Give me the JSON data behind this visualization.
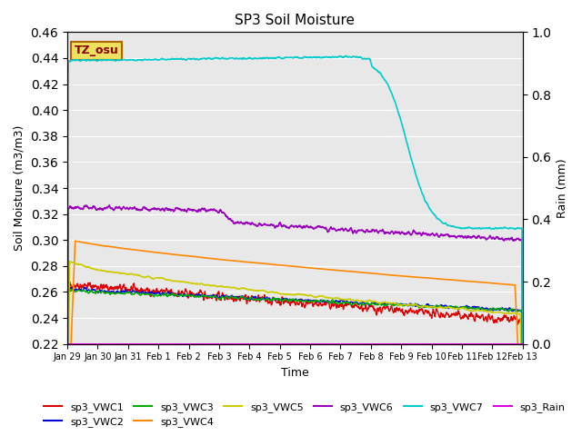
{
  "title": "SP3 Soil Moisture",
  "xlabel": "Time",
  "ylabel_left": "Soil Moisture (m3/m3)",
  "ylabel_right": "Rain (mm)",
  "ylim_left": [
    0.22,
    0.46
  ],
  "ylim_right": [
    0.0,
    1.0
  ],
  "yticks_left": [
    0.22,
    0.24,
    0.26,
    0.28,
    0.3,
    0.32,
    0.34,
    0.36,
    0.38,
    0.4,
    0.42,
    0.44,
    0.46
  ],
  "yticks_right": [
    0.0,
    0.2,
    0.4,
    0.6,
    0.8,
    1.0
  ],
  "xtick_labels": [
    "Jan 29",
    "Jan 30",
    "Jan 31",
    "Feb 1",
    "Feb 2",
    "Feb 3",
    "Feb 4",
    "Feb 5",
    "Feb 6",
    "Feb 7",
    "Feb 8",
    "Feb 9",
    "Feb 10",
    "Feb 11",
    "Feb 12",
    "Feb 13"
  ],
  "bg_color": "#e8e8e8",
  "annotation_text": "TZ_osu",
  "annotation_bg": "#f0e060",
  "annotation_border": "#aa6600",
  "legend_entries": [
    "sp3_VWC1",
    "sp3_VWC2",
    "sp3_VWC3",
    "sp3_VWC4",
    "sp3_VWC5",
    "sp3_VWC6",
    "sp3_VWC7",
    "sp3_Rain"
  ],
  "line_colors": [
    "#dd0000",
    "#0000dd",
    "#00aa00",
    "#ff8800",
    "#cccc00",
    "#9900bb",
    "#00cccc",
    "#dd00dd"
  ],
  "linewidths": [
    1.0,
    1.0,
    1.0,
    1.2,
    1.2,
    1.2,
    1.2,
    1.0
  ],
  "figsize": [
    6.4,
    4.8
  ],
  "dpi": 100
}
